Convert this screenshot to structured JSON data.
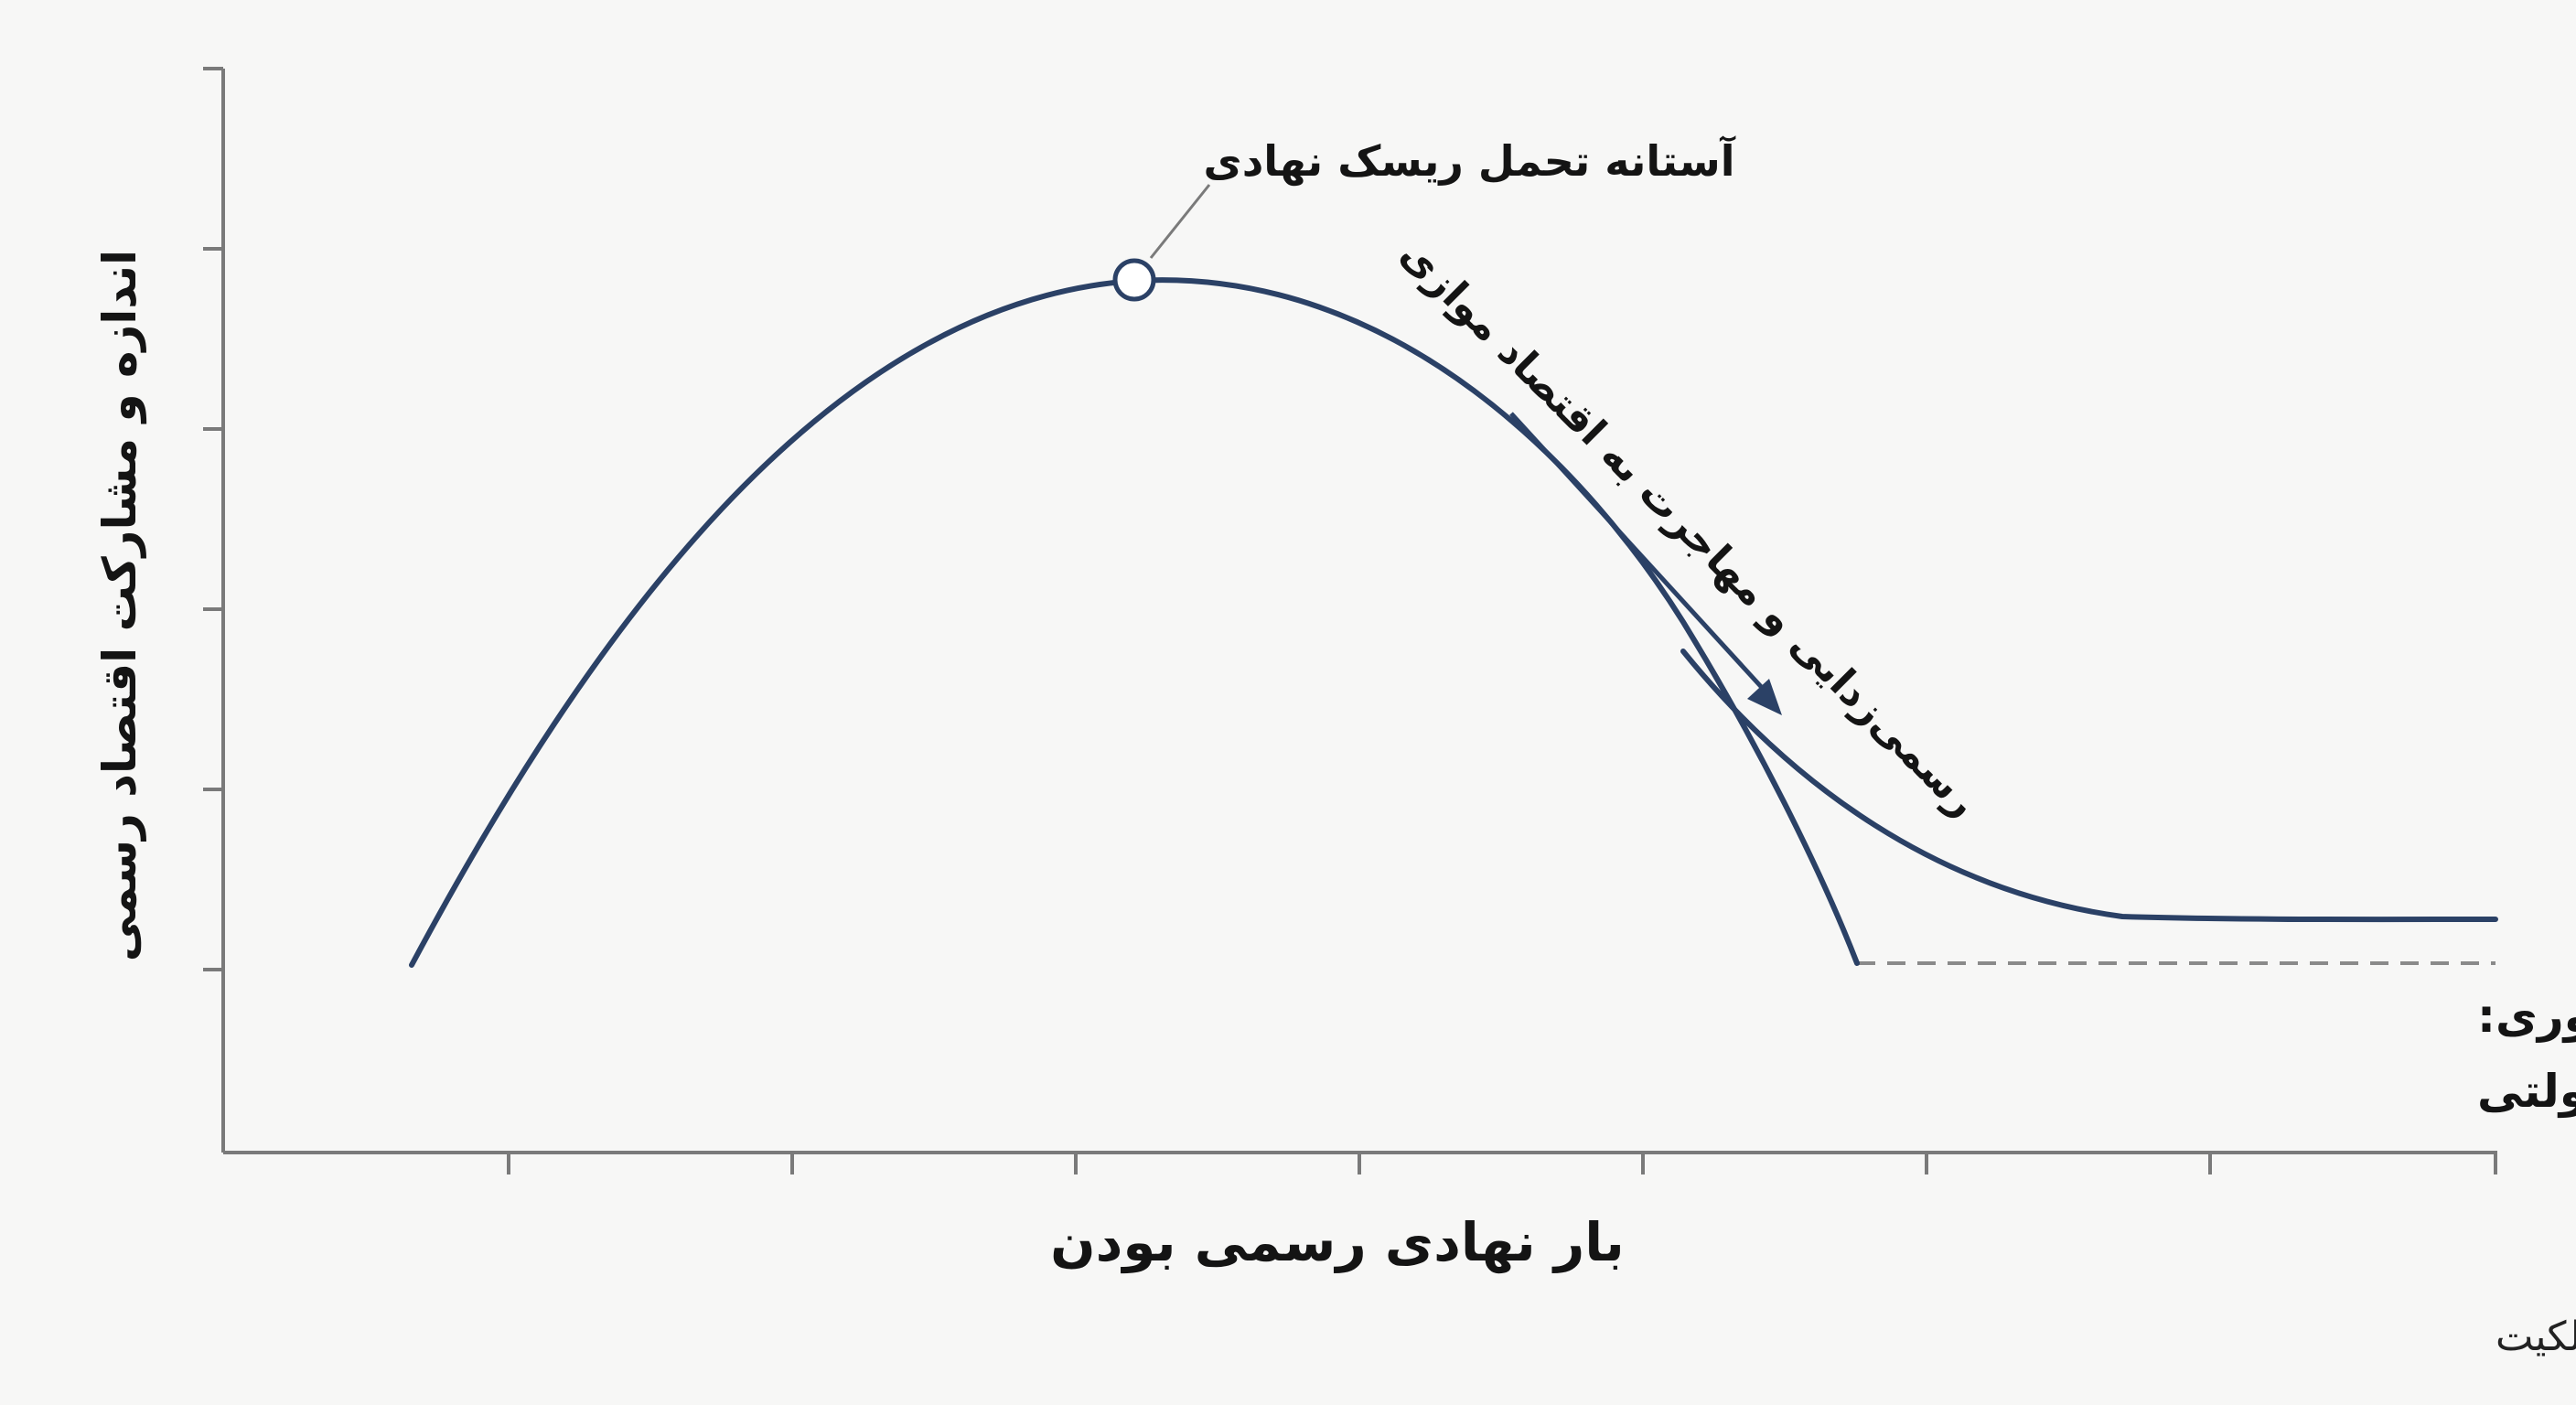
{
  "y_axis_title": "اندازه و مشارکت اقتصاد رسمی",
  "x_axis_title": "بار نهادی رسمی بودن",
  "x_axis_note": "بار نهادی = مالیات + تورم + بوروکراسی + ریسک تغییر قوانین + ریسک مالکیت",
  "peak_label": "آستانه تحمل ریسک نهادی",
  "shift_label": "رسمی‌زدایی و مهاجرت به اقتصاد موازی",
  "floor_label_line1": "حداقل رسمی ضروری:",
  "floor_label_line2": "نان، انرژی، خدمات دولتی",
  "colors": {
    "curve": "#2b4166",
    "axis": "#7a7a7a",
    "dashed_floor": "#8a8a8a",
    "background": "#f7f7f6"
  }
}
